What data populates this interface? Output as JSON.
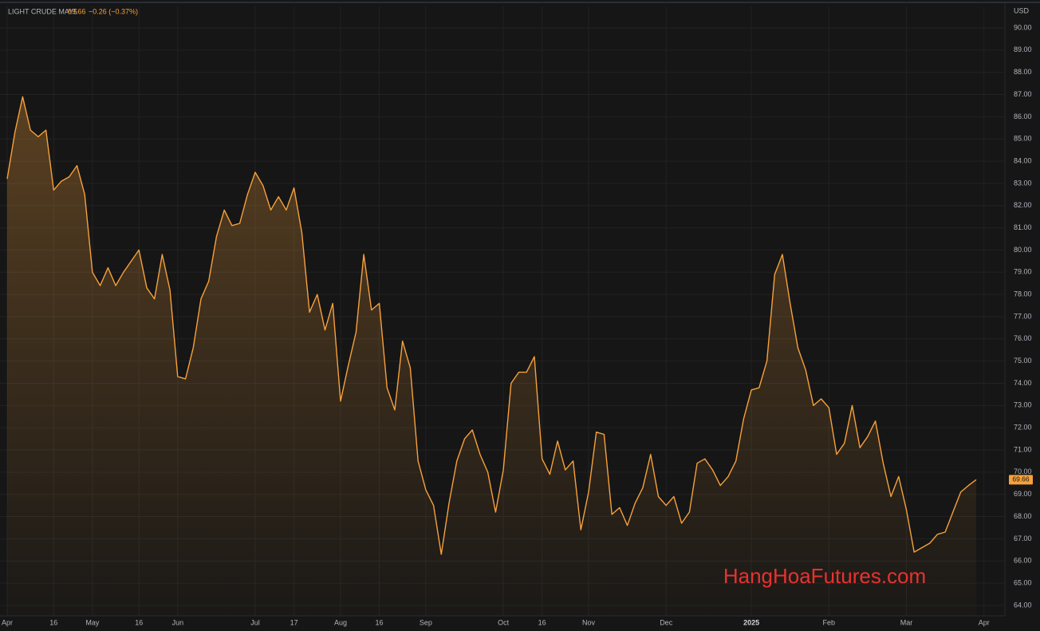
{
  "chart_data": {
    "type": "area",
    "symbol": "LIGHT CRUDE MAY5",
    "change": "−0.26 (−0.37%)",
    "currency": "USD",
    "watermark": "HangHoaFutures.com",
    "color": "#f7a13b",
    "grid": true,
    "categories": [
      "Apr",
      null,
      null,
      null,
      null,
      null,
      "16",
      null,
      null,
      null,
      null,
      "May",
      null,
      null,
      null,
      null,
      null,
      "16",
      null,
      null,
      null,
      null,
      "Jun",
      null,
      null,
      null,
      null,
      null,
      null,
      null,
      null,
      null,
      "Jul",
      null,
      null,
      null,
      null,
      "17",
      null,
      null,
      null,
      null,
      null,
      "Aug",
      null,
      null,
      null,
      null,
      "16",
      null,
      null,
      null,
      null,
      null,
      "Sep",
      null,
      null,
      null,
      null,
      null,
      null,
      null,
      null,
      null,
      "Oct",
      null,
      null,
      null,
      null,
      "16",
      null,
      null,
      null,
      null,
      null,
      "Nov",
      null,
      null,
      null,
      null,
      null,
      null,
      null,
      null,
      null,
      "Dec",
      null,
      null,
      null,
      null,
      null,
      null,
      null,
      null,
      null,
      null,
      "2025",
      null,
      null,
      null,
      null,
      null,
      null,
      null,
      null,
      null,
      "Feb",
      null,
      null,
      null,
      null,
      null,
      null,
      null,
      null,
      null,
      "Mar",
      null,
      null,
      null,
      null,
      null,
      null,
      null,
      null,
      null,
      "Apr"
    ],
    "values": [
      83.2,
      85.3,
      86.9,
      85.4,
      85.1,
      85.4,
      82.7,
      83.1,
      83.3,
      83.8,
      82.5,
      79.0,
      78.4,
      79.2,
      78.4,
      79.0,
      79.5,
      80.0,
      78.3,
      77.8,
      79.8,
      78.2,
      74.3,
      74.2,
      75.6,
      77.8,
      78.6,
      80.6,
      81.8,
      81.1,
      81.2,
      82.5,
      83.5,
      82.9,
      81.8,
      82.4,
      81.8,
      82.8,
      80.8,
      77.2,
      78.0,
      76.4,
      77.6,
      73.2,
      74.8,
      76.3,
      79.8,
      77.3,
      77.6,
      73.8,
      72.8,
      75.9,
      74.7,
      70.5,
      69.2,
      68.5,
      66.3,
      68.6,
      70.5,
      71.5,
      71.9,
      70.8,
      70.0,
      68.2,
      70.1,
      74.0,
      74.5,
      74.5,
      75.2,
      70.6,
      69.9,
      71.4,
      70.1,
      70.5,
      67.4,
      69.1,
      71.8,
      71.7,
      68.1,
      68.4,
      67.6,
      68.6,
      69.3,
      70.8,
      68.9,
      68.5,
      68.9,
      67.7,
      68.2,
      70.4,
      70.6,
      70.1,
      69.4,
      69.8,
      70.5,
      72.4,
      73.7,
      73.8,
      75.0,
      78.9,
      79.8,
      77.6,
      75.6,
      74.6,
      73.0,
      73.3,
      72.9,
      70.8,
      71.3,
      73.0,
      71.1,
      71.6,
      72.3,
      70.4,
      68.9,
      69.8,
      68.3,
      66.4,
      66.6,
      66.8,
      67.2,
      67.3,
      68.2,
      69.1,
      69.4,
      69.66,
      null
    ],
    "ylim": [
      63.53,
      90.97
    ],
    "yticks": [
      {
        "value": 64,
        "label": "64.00"
      },
      {
        "value": 65,
        "label": "65.00"
      },
      {
        "value": 66,
        "label": "66.00"
      },
      {
        "value": 67,
        "label": "67.00"
      },
      {
        "value": 68,
        "label": "68.00"
      },
      {
        "value": 69,
        "label": "69.00"
      },
      {
        "value": 70,
        "label": "70.00"
      },
      {
        "value": 71,
        "label": "71.00"
      },
      {
        "value": 72,
        "label": "72.00"
      },
      {
        "value": 73,
        "label": "73.00"
      },
      {
        "value": 74,
        "label": "74.00"
      },
      {
        "value": 75,
        "label": "75.00"
      },
      {
        "value": 76,
        "label": "76.00"
      },
      {
        "value": 77,
        "label": "77.00"
      },
      {
        "value": 78,
        "label": "78.00"
      },
      {
        "value": 79,
        "label": "79.00"
      },
      {
        "value": 80,
        "label": "80.00"
      },
      {
        "value": 81,
        "label": "81.00"
      },
      {
        "value": 82,
        "label": "82.00"
      },
      {
        "value": 83,
        "label": "83.00"
      },
      {
        "value": 84,
        "label": "84.00"
      },
      {
        "value": 85,
        "label": "85.00"
      },
      {
        "value": 86,
        "label": "86.00"
      },
      {
        "value": 87,
        "label": "87.00"
      },
      {
        "value": 88,
        "label": "88.00"
      },
      {
        "value": 89,
        "label": "89.00"
      },
      {
        "value": 90,
        "label": "90.00"
      }
    ]
  }
}
